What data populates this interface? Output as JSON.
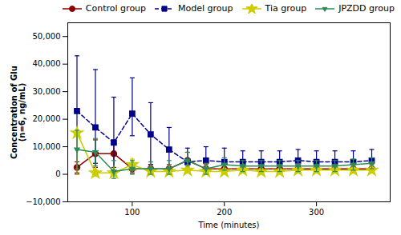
{
  "chart_data": {
    "type": "line",
    "x": [
      40,
      60,
      80,
      100,
      120,
      140,
      160,
      180,
      200,
      220,
      240,
      260,
      280,
      300,
      320,
      340,
      360
    ],
    "series": [
      {
        "name": "Control group",
        "color": "#8B0000",
        "marker": "circle",
        "line_style": "solid",
        "values": [
          2500,
          7500,
          7500,
          2000,
          2000,
          2000,
          5000,
          2000,
          2000,
          2000,
          2000,
          2000,
          2000,
          2000,
          2000,
          2000,
          2000
        ],
        "yerr_lo": [
          2000,
          5000,
          5000,
          1500,
          1500,
          1500,
          3000,
          1500,
          1500,
          1500,
          1500,
          1500,
          1500,
          1500,
          1500,
          1500,
          1500
        ],
        "yerr_hi": [
          2000,
          5000,
          5000,
          1500,
          1500,
          1500,
          3000,
          1500,
          1500,
          1500,
          1500,
          1500,
          1500,
          1500,
          1500,
          1500,
          1500
        ]
      },
      {
        "name": "Model group",
        "color": "#00008B",
        "marker": "square",
        "line_style": "dashed",
        "values": [
          23000,
          17000,
          11500,
          22000,
          14500,
          9000,
          4500,
          5000,
          4500,
          4500,
          4500,
          4500,
          5000,
          4500,
          4500,
          4500,
          5000
        ],
        "yerr_lo": [
          23000,
          13000,
          11500,
          8000,
          11000,
          7000,
          4000,
          4000,
          4000,
          3000,
          3000,
          3000,
          3000,
          3000,
          3000,
          3000,
          4000
        ],
        "yerr_hi": [
          20000,
          21000,
          16500,
          13000,
          11500,
          8000,
          5000,
          5000,
          5000,
          4000,
          4000,
          4000,
          4000,
          4000,
          4000,
          4000,
          4000
        ]
      },
      {
        "name": "Tia group",
        "color": "#CCCC00",
        "marker": "star",
        "line_style": "solid",
        "values": [
          15000,
          500,
          500,
          3500,
          1000,
          1000,
          1500,
          1000,
          1000,
          1500,
          1000,
          1000,
          1500,
          1500,
          1500,
          1500,
          1500
        ],
        "yerr_lo": [
          15000,
          1000,
          1000,
          2000,
          1000,
          1000,
          1000,
          1000,
          1000,
          1000,
          1000,
          1000,
          1000,
          1000,
          1000,
          1000,
          1000
        ],
        "yerr_hi": [
          0,
          1000,
          1000,
          2000,
          1000,
          1000,
          1000,
          1000,
          1000,
          1000,
          1000,
          1000,
          1000,
          1000,
          1000,
          1000,
          1000
        ]
      },
      {
        "name": "JPZDD group",
        "color": "#2E8B57",
        "marker": "triangle-down",
        "line_style": "solid",
        "values": [
          9000,
          8000,
          1000,
          2000,
          2000,
          2000,
          5000,
          2000,
          3500,
          3000,
          3000,
          3000,
          3000,
          3000,
          3000,
          3500,
          4000
        ],
        "yerr_lo": [
          7000,
          5000,
          2500,
          2000,
          2000,
          2000,
          2000,
          2000,
          2000,
          2000,
          2000,
          2000,
          2000,
          2000,
          2000,
          2000,
          2000
        ],
        "yerr_hi": [
          7000,
          5000,
          4000,
          3000,
          2500,
          3000,
          3000,
          2000,
          2500,
          2000,
          2000,
          2000,
          2000,
          2000,
          2000,
          2000,
          2000
        ]
      }
    ],
    "xlabel": "Time (minutes)",
    "ylabel": "Concentration of Glu\n(n=6, ng/mL)",
    "xlim": [
      30,
      380
    ],
    "ylim": [
      -10000,
      55000
    ],
    "xticks": [
      100,
      200,
      300
    ],
    "yticks": [
      {
        "value": -10000,
        "label": "−10,000"
      },
      0,
      {
        "value": 10000,
        "label": "10,000"
      },
      {
        "value": 20000,
        "label": "20,000"
      },
      {
        "value": 30000,
        "label": "30,000"
      },
      {
        "value": 40000,
        "label": "40,000"
      },
      {
        "value": 50000,
        "label": "50,000"
      }
    ],
    "legend": "upper right"
  }
}
